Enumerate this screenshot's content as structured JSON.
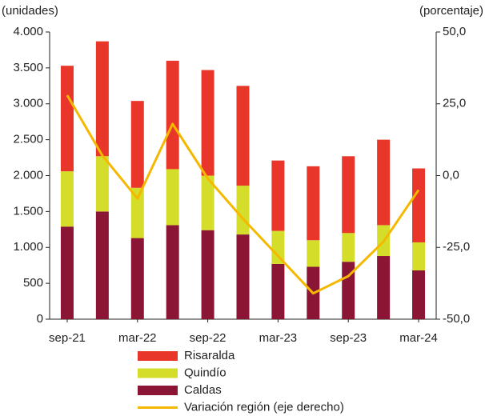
{
  "chart_data": {
    "type": "bar",
    "stacked": true,
    "y_label": "(unidades)",
    "y2_label": "(porcentaje)",
    "categories": [
      "sep-21",
      null,
      "mar-22",
      null,
      "sep-22",
      null,
      "mar-23",
      null,
      "sep-23",
      null,
      "mar-24"
    ],
    "series": [
      {
        "name": "Risaralda",
        "color": "#e8362a",
        "values": [
          1470,
          1600,
          1210,
          1510,
          1470,
          1390,
          980,
          1030,
          1070,
          1190,
          1030
        ]
      },
      {
        "name": "Quindío",
        "color": "#d4de2a",
        "values": [
          770,
          770,
          700,
          780,
          760,
          680,
          460,
          370,
          400,
          430,
          390
        ]
      },
      {
        "name": "Caldas",
        "color": "#8b1535",
        "values": [
          1290,
          1500,
          1130,
          1310,
          1240,
          1180,
          770,
          730,
          800,
          880,
          680
        ]
      },
      {
        "name": "Variación región (eje derecho)",
        "type": "line",
        "axis": "y2",
        "color": "#f5b800",
        "values": [
          28,
          7,
          -8,
          18,
          -1,
          -15,
          -28,
          -41,
          -35,
          -23,
          -5
        ]
      }
    ],
    "ylim": [
      0,
      4000
    ],
    "yticks": [
      0,
      500,
      {
        "value": 1000,
        "label": "1.000"
      },
      {
        "value": 1500,
        "label": "1.500"
      },
      {
        "value": 2000,
        "label": "2.000"
      },
      {
        "value": 2500,
        "label": "2.500"
      },
      {
        "value": 3000,
        "label": "3.000"
      },
      {
        "value": 3500,
        "label": "3.500"
      },
      {
        "value": 4000,
        "label": "4.000"
      }
    ],
    "y2lim": [
      -50,
      50
    ],
    "y2ticks": [
      {
        "value": -50,
        "label": "-50,0"
      },
      {
        "value": -25,
        "label": "-25,0"
      },
      {
        "value": 0,
        "label": "0,0"
      },
      {
        "value": 25,
        "label": "25,0"
      },
      {
        "value": 50,
        "label": "50,0"
      }
    ]
  }
}
